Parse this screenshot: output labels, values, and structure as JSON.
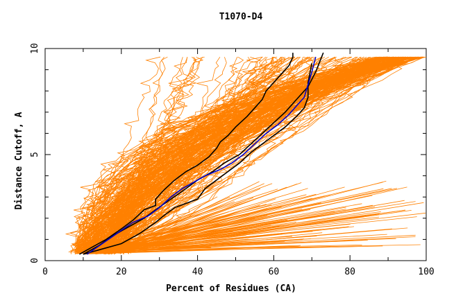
{
  "chart_data": {
    "type": "line",
    "title": "T1070-D4",
    "xlabel": "Percent of Residues (CA)",
    "ylabel": "Distance Cutoff, A",
    "xlim": [
      0,
      100
    ],
    "ylim": [
      0,
      10
    ],
    "x_ticks": [
      0,
      20,
      40,
      60,
      80,
      100
    ],
    "y_ticks": [
      0,
      5,
      10
    ],
    "colors": {
      "models": "#ff8000",
      "highlight_black": "#000000",
      "highlight_blue": "#0000c8"
    },
    "highlight_series": [
      {
        "name": "model-black-1",
        "color": "#000000",
        "x": [
          9,
          12,
          16,
          20,
          23,
          26,
          29,
          29,
          31,
          34,
          37,
          40,
          43,
          45,
          46,
          48,
          50,
          53,
          55,
          57,
          58,
          60,
          62,
          64,
          65,
          65
        ],
        "y": [
          0.3,
          0.6,
          1.0,
          1.5,
          1.9,
          2.4,
          2.6,
          2.9,
          3.3,
          3.8,
          4.2,
          4.5,
          4.9,
          5.3,
          5.6,
          5.9,
          6.3,
          6.8,
          7.2,
          7.6,
          8.0,
          8.4,
          8.8,
          9.2,
          9.6,
          9.8
        ]
      },
      {
        "name": "model-black-2",
        "color": "#000000",
        "x": [
          10,
          14,
          20,
          25,
          29,
          31,
          34,
          37,
          40,
          42,
          45,
          48,
          51,
          54,
          57,
          60,
          63,
          66,
          68,
          69,
          69,
          70
        ],
        "y": [
          0.3,
          0.5,
          0.8,
          1.3,
          1.8,
          2.1,
          2.5,
          2.7,
          2.9,
          3.4,
          3.8,
          4.2,
          4.6,
          5.1,
          5.5,
          5.9,
          6.3,
          6.8,
          7.2,
          7.7,
          8.4,
          9.3
        ]
      },
      {
        "name": "model-black-3",
        "color": "#000000",
        "x": [
          10,
          14,
          18,
          22,
          26,
          29,
          33,
          37,
          40,
          44,
          47,
          51,
          54,
          57,
          60,
          63,
          66,
          69,
          71,
          73
        ],
        "y": [
          0.3,
          0.7,
          1.2,
          1.6,
          2.0,
          2.4,
          2.9,
          3.4,
          3.8,
          4.2,
          4.6,
          5.0,
          5.5,
          6.0,
          6.5,
          7.0,
          7.6,
          8.2,
          8.9,
          9.8
        ]
      },
      {
        "name": "model-blue",
        "color": "#0000c8",
        "x": [
          11,
          15,
          19,
          23,
          27,
          30,
          33,
          36,
          39,
          42,
          46,
          49,
          52,
          55,
          58,
          61,
          64,
          66,
          68,
          69,
          70,
          71
        ],
        "y": [
          0.3,
          0.8,
          1.3,
          1.8,
          2.1,
          2.5,
          3.0,
          3.4,
          3.7,
          4.0,
          4.3,
          4.6,
          5.0,
          5.5,
          6.0,
          6.4,
          6.9,
          7.3,
          7.7,
          8.3,
          8.9,
          9.6
        ]
      }
    ]
  }
}
